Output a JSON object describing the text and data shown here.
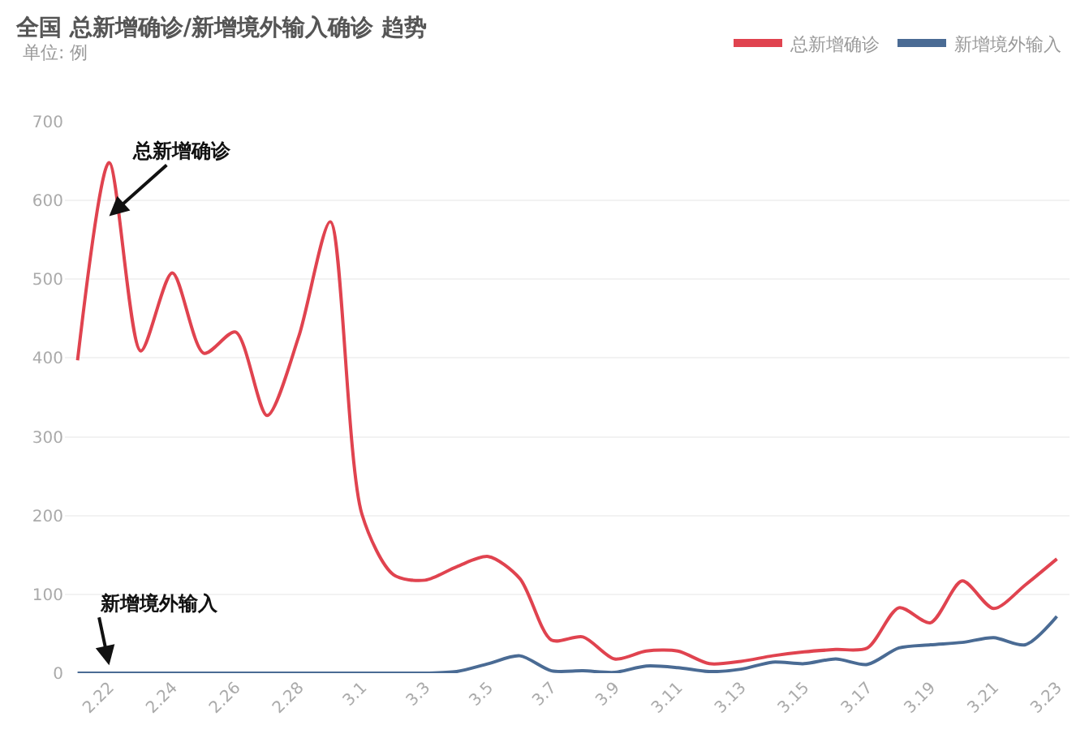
{
  "chart_data": {
    "type": "line",
    "title": "全国 总新增确诊/新增境外输入确诊 趋势",
    "subtitle": "单位: 例",
    "categories": [
      null,
      "2.22",
      null,
      "2.24",
      null,
      "2.26",
      null,
      "2.28",
      null,
      "3.1",
      null,
      "3.3",
      null,
      "3.5",
      null,
      "3.7",
      null,
      "3.9",
      null,
      "3.11",
      null,
      "3.13",
      null,
      "3.15",
      null,
      "3.17",
      null,
      "3.19",
      null,
      "3.21",
      null,
      "3.23"
    ],
    "series": [
      {
        "name": "总新增确诊",
        "color": "#e0434f",
        "values": [
          397,
          648,
          409,
          508,
          406,
          433,
          327,
          427,
          573,
          202,
          125,
          118,
          135,
          148,
          120,
          42,
          46,
          18,
          28,
          28,
          12,
          15,
          22,
          27,
          30,
          32,
          83,
          64,
          117,
          82,
          112,
          145
        ]
      },
      {
        "name": "新增境外输入",
        "color": "#4a6b94",
        "values": [
          0,
          0,
          0,
          0,
          0,
          0,
          0,
          0,
          0,
          0,
          0,
          0,
          2,
          12,
          22,
          3,
          3,
          1,
          9,
          7,
          2,
          5,
          14,
          12,
          18,
          11,
          32,
          36,
          39,
          45,
          36,
          72
        ]
      }
    ],
    "ylim": [
      0,
      700
    ],
    "yticks": [
      0,
      100,
      200,
      300,
      400,
      500,
      600,
      700
    ],
    "grid": "y",
    "legend": "top right",
    "marker": "none",
    "line_style": "solid",
    "annotations": [
      {
        "text": "总新增确诊",
        "x": "2.22",
        "y": 580
      },
      {
        "text": "新增境外输入",
        "x": "2.22",
        "y": 10
      }
    ]
  }
}
